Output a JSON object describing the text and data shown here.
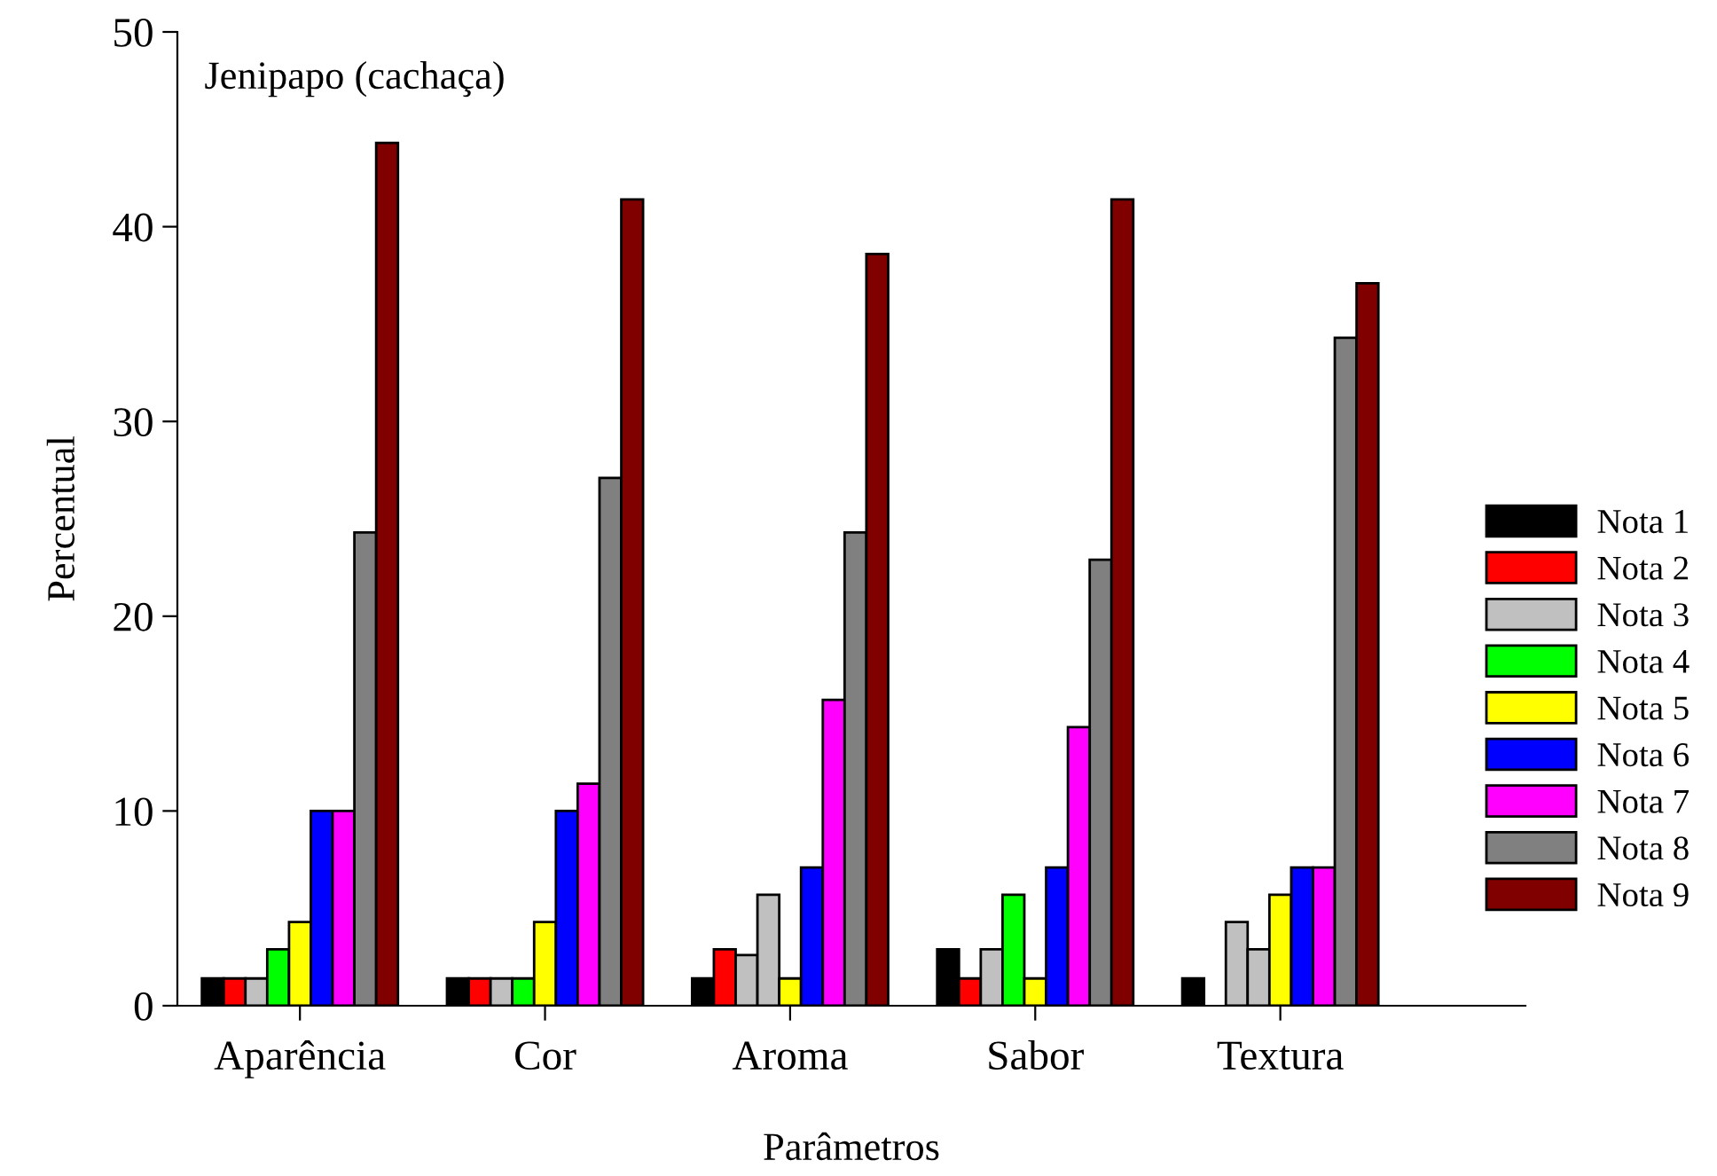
{
  "chart_data": {
    "type": "bar",
    "title": "Jenipapo (cachaça)",
    "xlabel": "Parâmetros",
    "ylabel": "Percentual",
    "categories": [
      "Aparência",
      "Cor",
      "Aroma",
      "Sabor",
      "Textura"
    ],
    "series": [
      {
        "name": "Nota 1",
        "color": "#000000",
        "values": [
          1.4,
          1.4,
          1.4,
          2.9,
          1.4
        ]
      },
      {
        "name": "Nota 2",
        "color": "#ff0000",
        "values": [
          1.4,
          1.4,
          2.9,
          1.4,
          0
        ]
      },
      {
        "name": "Nota 3",
        "color": "#c0c0c0",
        "values": [
          1.4,
          1.4,
          2.6,
          2.9,
          4.3
        ]
      },
      {
        "name": "Nota 4",
        "color": "#00ff00",
        "colors": [
          "#00ff00",
          "#00ff00",
          "#c0c0c0",
          "#00ff00",
          "#c0c0c0"
        ],
        "values": [
          2.9,
          1.4,
          5.7,
          5.7,
          2.9
        ]
      },
      {
        "name": "Nota 5",
        "color": "#ffff00",
        "values": [
          4.3,
          4.3,
          1.4,
          1.4,
          5.7
        ]
      },
      {
        "name": "Nota 6",
        "color": "#0000ff",
        "values": [
          10,
          10,
          7.1,
          7.1,
          7.1
        ]
      },
      {
        "name": "Nota 7",
        "color": "#ff00ff",
        "values": [
          10,
          11.4,
          15.7,
          14.3,
          7.1
        ]
      },
      {
        "name": "Nota 8",
        "color": "#808080",
        "values": [
          24.3,
          27.1,
          24.3,
          22.9,
          34.3
        ]
      },
      {
        "name": "Nota 9",
        "color": "#800000",
        "values": [
          44.3,
          41.4,
          38.6,
          41.4,
          37.1
        ]
      }
    ],
    "ylim": [
      0,
      50
    ],
    "yticks": [
      0,
      10,
      20,
      30,
      40,
      50
    ],
    "legend": "right"
  }
}
